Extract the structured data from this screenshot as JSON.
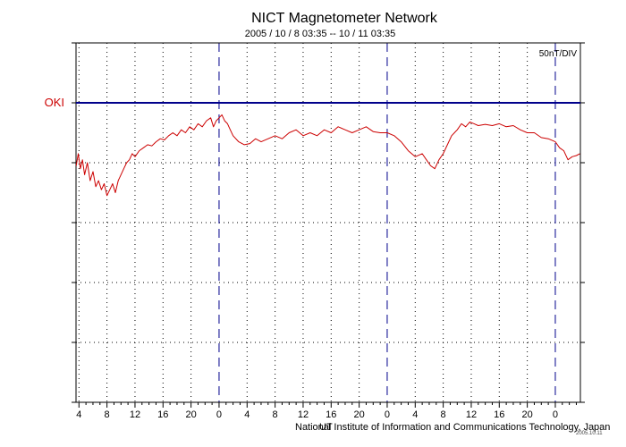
{
  "title": "NICT Magnetometer Network",
  "subtitle": "2005 / 10 /  8   03:35 -- 10 / 11   03:35",
  "footer": "National Institute of Information and Communications Technology, Japan",
  "footer_mark": "UT",
  "stamp": "2005.10.11",
  "colors": {
    "trace": "#cc0000",
    "baseline": "#00008b",
    "day_marker": "#00008b",
    "station_label": "#cc0000",
    "grid": "#000000"
  },
  "chart_data": {
    "type": "line",
    "title": "NICT Magnetometer Network",
    "subtitle": "2005 / 10 /  8   03:35 -- 10 / 11   03:35",
    "scale_label": "50nT/DIV",
    "xlabel": "UT",
    "x_unit": "hours UT from 2005/10/08 00:00",
    "xlim": [
      3.58,
      75.58
    ],
    "ylabel": "",
    "y_unit": "divisions (50 nT/DIV) relative to station baseline",
    "ylim": [
      -5,
      1
    ],
    "grid": true,
    "x_tick_labels": [
      "4",
      "8",
      "12",
      "16",
      "20",
      "0",
      "4",
      "8",
      "12",
      "16",
      "20",
      "0",
      "4",
      "8",
      "12",
      "16",
      "20",
      "0"
    ],
    "day_boundaries": [
      24,
      48,
      72
    ],
    "station": {
      "name": "OKI",
      "baseline": 0
    },
    "series": [
      {
        "name": "OKI",
        "x": [
          3.6,
          3.9,
          4.2,
          4.5,
          4.8,
          5.2,
          5.6,
          6.0,
          6.4,
          6.8,
          7.2,
          7.6,
          8.0,
          8.4,
          8.8,
          9.2,
          9.6,
          10.0,
          10.4,
          10.8,
          11.2,
          11.6,
          12.0,
          12.6,
          13.2,
          13.8,
          14.4,
          15.0,
          15.6,
          16.2,
          16.8,
          17.4,
          18.0,
          18.6,
          19.2,
          19.8,
          20.4,
          21.0,
          21.6,
          22.2,
          22.8,
          23.2,
          23.6,
          24.0,
          24.4,
          24.8,
          25.2,
          25.6,
          26.0,
          26.8,
          27.6,
          28.4,
          29.2,
          30.0,
          31.0,
          32.0,
          33.0,
          34.0,
          35.0,
          36.0,
          37.0,
          38.0,
          39.0,
          40.0,
          41.0,
          42.0,
          43.0,
          44.0,
          45.0,
          46.0,
          47.0,
          48.0,
          49.0,
          50.0,
          51.0,
          52.0,
          53.0,
          53.6,
          54.2,
          54.8,
          55.4,
          56.0,
          56.6,
          57.2,
          58.0,
          58.6,
          59.2,
          59.8,
          60.4,
          61.0,
          62.0,
          63.0,
          64.0,
          65.0,
          66.0,
          67.0,
          68.0,
          69.0,
          70.0,
          71.0,
          72.0,
          72.6,
          73.2,
          73.8,
          74.4,
          75.0,
          75.5
        ],
        "y": [
          -1.05,
          -0.85,
          -1.1,
          -0.95,
          -1.2,
          -1.0,
          -1.3,
          -1.15,
          -1.4,
          -1.3,
          -1.45,
          -1.35,
          -1.55,
          -1.45,
          -1.35,
          -1.5,
          -1.3,
          -1.2,
          -1.1,
          -1.0,
          -0.95,
          -0.85,
          -0.9,
          -0.8,
          -0.75,
          -0.7,
          -0.72,
          -0.65,
          -0.6,
          -0.62,
          -0.55,
          -0.5,
          -0.55,
          -0.45,
          -0.5,
          -0.4,
          -0.45,
          -0.35,
          -0.4,
          -0.3,
          -0.25,
          -0.4,
          -0.3,
          -0.25,
          -0.2,
          -0.3,
          -0.35,
          -0.45,
          -0.55,
          -0.65,
          -0.7,
          -0.68,
          -0.6,
          -0.65,
          -0.6,
          -0.55,
          -0.6,
          -0.5,
          -0.45,
          -0.55,
          -0.5,
          -0.55,
          -0.45,
          -0.5,
          -0.4,
          -0.45,
          -0.5,
          -0.45,
          -0.4,
          -0.48,
          -0.5,
          -0.5,
          -0.55,
          -0.65,
          -0.8,
          -0.9,
          -0.85,
          -0.95,
          -1.05,
          -1.1,
          -0.95,
          -0.85,
          -0.7,
          -0.55,
          -0.45,
          -0.35,
          -0.4,
          -0.32,
          -0.35,
          -0.38,
          -0.36,
          -0.38,
          -0.35,
          -0.4,
          -0.38,
          -0.45,
          -0.5,
          -0.5,
          -0.58,
          -0.6,
          -0.65,
          -0.75,
          -0.8,
          -0.95,
          -0.9,
          -0.88,
          -0.85
        ]
      }
    ]
  }
}
